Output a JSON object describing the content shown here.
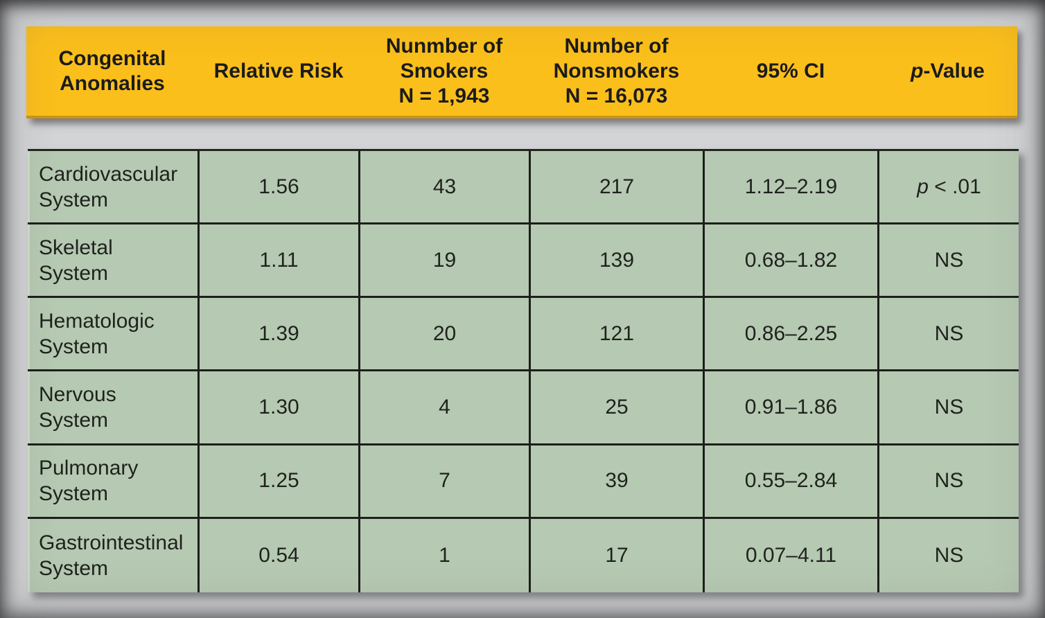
{
  "colors": {
    "page_background": "#D3D4D6",
    "header_background": "#FBBF1C",
    "header_bottom_edge": "#CE9414",
    "body_background": "#B6C9B2",
    "grid_line": "#1C1F1A",
    "text": "#1E221D"
  },
  "header": {
    "col1": {
      "line1": "Congenital",
      "line2": "Anomalies"
    },
    "col2": {
      "line1": "Relative Risk"
    },
    "col3": {
      "line1": "Nunmber of",
      "line2": "Smokers",
      "line3": "N = 1,943"
    },
    "col4": {
      "line1": "Number of",
      "line2": "Nonsmokers",
      "line3": "N = 16,073"
    },
    "col5": {
      "line1": "95% CI"
    },
    "col6": {
      "italic": "p",
      "rest": "-Value"
    }
  },
  "table": {
    "rows": [
      {
        "anomaly_line1": "Cardiovascular",
        "anomaly_line2": "System",
        "relative_risk": "1.56",
        "smokers": "43",
        "nonsmokers": "217",
        "ci": "1.12–2.19",
        "p_italic": "p",
        "p_rest": " < .01"
      },
      {
        "anomaly_line1": "Skeletal",
        "anomaly_line2": "System",
        "relative_risk": "1.11",
        "smokers": "19",
        "nonsmokers": "139",
        "ci": "0.68–1.82",
        "p_italic": "",
        "p_rest": "NS"
      },
      {
        "anomaly_line1": "Hematologic",
        "anomaly_line2": "System",
        "relative_risk": "1.39",
        "smokers": "20",
        "nonsmokers": "121",
        "ci": "0.86–2.25",
        "p_italic": "",
        "p_rest": "NS"
      },
      {
        "anomaly_line1": "Nervous",
        "anomaly_line2": "System",
        "relative_risk": "1.30",
        "smokers": "4",
        "nonsmokers": "25",
        "ci": "0.91–1.86",
        "p_italic": "",
        "p_rest": "NS"
      },
      {
        "anomaly_line1": "Pulmonary",
        "anomaly_line2": "System",
        "relative_risk": "1.25",
        "smokers": "7",
        "nonsmokers": "39",
        "ci": "0.55–2.84",
        "p_italic": "",
        "p_rest": "NS"
      },
      {
        "anomaly_line1": "Gastrointestinal",
        "anomaly_line2": "System",
        "relative_risk": "0.54",
        "smokers": "1",
        "nonsmokers": "17",
        "ci": "0.07–4.11",
        "p_italic": "",
        "p_rest": "NS"
      }
    ]
  }
}
